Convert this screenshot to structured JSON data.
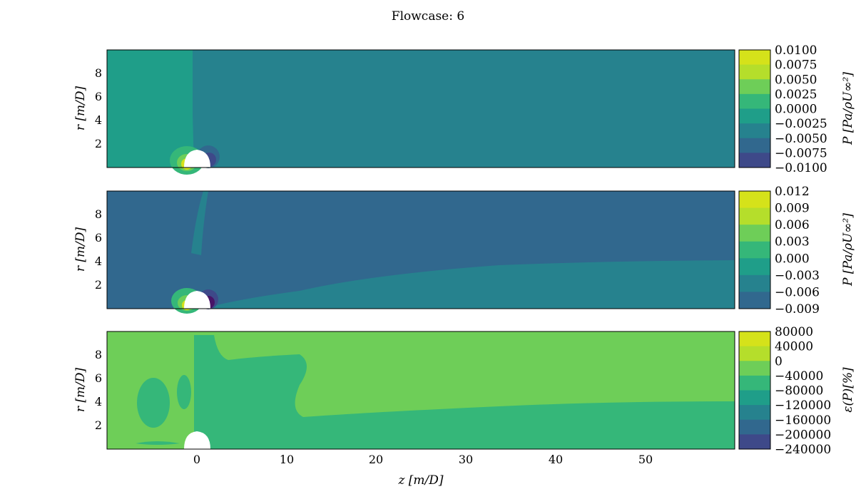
{
  "figure": {
    "title": "Flowcase: 6"
  },
  "colors": {
    "viridis9": [
      "#440154",
      "#46327e",
      "#365c8d",
      "#277f8e",
      "#1fa187",
      "#4ac16d",
      "#a0da39",
      "#fde725",
      "#fde725"
    ],
    "levels": [
      "#481467",
      "#3e4989",
      "#31688e",
      "#26828e",
      "#1f9e89",
      "#35b779",
      "#6ece58",
      "#b5de2b",
      "#d5e21a"
    ]
  },
  "chart_data": [
    {
      "type": "contour",
      "panel": "pressure_reference",
      "xlim": [
        -10,
        60
      ],
      "ylim": [
        0,
        10
      ],
      "yticks": [
        "2",
        "4",
        "6",
        "8"
      ],
      "ylabel": "r [m/D]",
      "colorbar": {
        "label": "P [Pa/ρU∞²]",
        "levels": [
          "0.0100",
          "0.0075",
          "0.0050",
          "0.0025",
          "0.0000",
          "−0.0025",
          "−0.0050",
          "−0.0075",
          "−0.0100"
        ]
      },
      "regions": {
        "upstream_level": 4,
        "downstream_level": 3
      }
    },
    {
      "type": "contour",
      "panel": "pressure_model",
      "xlim": [
        -10,
        60
      ],
      "ylim": [
        0,
        10
      ],
      "yticks": [
        "2",
        "4",
        "6",
        "8"
      ],
      "ylabel": "r [m/D]",
      "colorbar": {
        "label": "P [Pa/ρU∞²]",
        "levels": [
          "0.012",
          "0.009",
          "0.006",
          "0.003",
          "0.000",
          "−0.003",
          "−0.006",
          "−0.009"
        ]
      },
      "regions": {
        "outer_level": 2,
        "wake_level": 3
      }
    },
    {
      "type": "contour",
      "panel": "pressure_error",
      "xlim": [
        -10,
        60
      ],
      "ylim": [
        0,
        10
      ],
      "yticks": [
        "2",
        "4",
        "6",
        "8"
      ],
      "xticks": [
        "0",
        "10",
        "20",
        "30",
        "40",
        "50"
      ],
      "ylabel": "r [m/D]",
      "xlabel": "z [m/D]",
      "colorbar": {
        "label": "ε(P)[%]",
        "levels": [
          "80000",
          "40000",
          "0",
          "−40000",
          "−80000",
          "−120000",
          "−160000",
          "−200000",
          "−240000"
        ]
      },
      "regions": {
        "outer_level": 6,
        "wake_level": 5
      }
    }
  ]
}
